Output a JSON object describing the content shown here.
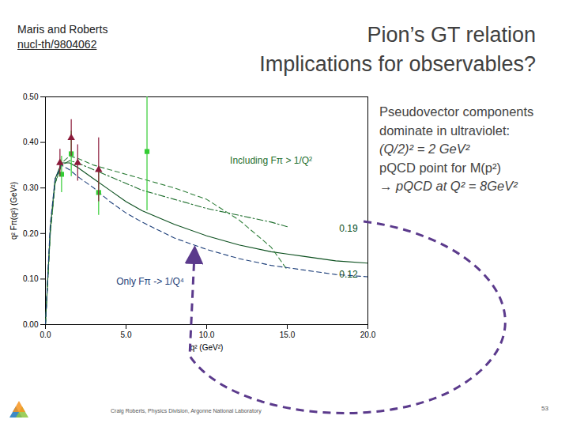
{
  "header": {
    "source": "Maris and Roberts",
    "link": "nucl-th/9804062",
    "title": [
      "Pion’s GT relation",
      "Implications for observables?"
    ]
  },
  "bullets": [
    {
      "text": "Pseudovector components",
      "italic": false
    },
    {
      "text": "dominate in ultraviolet:",
      "italic": false
    },
    {
      "text": "(Q/2)² = 2 GeV²",
      "italic": true
    },
    {
      "text": "pQCD point for M(p²)",
      "italic": false
    },
    {
      "text": "→ pQCD at Q² = 8GeV²",
      "italic": true
    }
  ],
  "footer": {
    "text": "Craig Roberts, Physics Division, Argonne National Laboratory",
    "page": "53"
  },
  "chart_data": {
    "type": "line",
    "x_label": "q² (GeV²)",
    "y_label": "q² Fπ(q²) (GeV²)",
    "xlim": [
      0,
      20
    ],
    "ylim": [
      0,
      0.5
    ],
    "xticks": [
      {
        "value": 0,
        "label": "0.0"
      },
      {
        "value": 5,
        "label": "5.0"
      },
      {
        "value": 10,
        "label": "10.0"
      },
      {
        "value": 15,
        "label": "15.0"
      },
      {
        "value": 20,
        "label": "20.0"
      }
    ],
    "yticks": [
      {
        "value": 0,
        "label": "0.00"
      },
      {
        "value": 0.1,
        "label": "0.10"
      },
      {
        "value": 0.2,
        "label": "0.20"
      },
      {
        "value": 0.3,
        "label": "0.30"
      },
      {
        "value": 0.4,
        "label": "0.40"
      },
      {
        "value": 0.5,
        "label": "0.50"
      }
    ],
    "series": [
      {
        "type": "line",
        "color": "#0b4f1e",
        "line_style": "solid",
        "x": [
          0,
          0.3,
          0.6,
          1,
          1.5,
          2,
          3,
          4,
          5,
          6,
          8,
          10,
          12,
          14,
          15,
          16,
          18,
          20
        ],
        "values": [
          0,
          0.21,
          0.32,
          0.355,
          0.355,
          0.345,
          0.32,
          0.295,
          0.27,
          0.25,
          0.22,
          0.195,
          0.175,
          0.16,
          0.155,
          0.15,
          0.14,
          0.135
        ]
      },
      {
        "type": "line",
        "color": "#1f6f2e",
        "line_style": "dashdot",
        "x": [
          0,
          0.3,
          0.6,
          1,
          1.5,
          2,
          3,
          4,
          5,
          6,
          8,
          10,
          12,
          14,
          15
        ],
        "values": [
          0,
          0.2,
          0.31,
          0.35,
          0.36,
          0.355,
          0.34,
          0.325,
          0.31,
          0.295,
          0.275,
          0.255,
          0.24,
          0.225,
          0.215
        ]
      },
      {
        "type": "line",
        "color": "#2f7f3a",
        "line_style": "dashed",
        "x": [
          0,
          0.3,
          0.6,
          1,
          1.5,
          2,
          3,
          4,
          5,
          6,
          8,
          10,
          12,
          14,
          15
        ],
        "values": [
          0,
          0.2,
          0.31,
          0.355,
          0.37,
          0.365,
          0.35,
          0.34,
          0.33,
          0.32,
          0.3,
          0.275,
          0.23,
          0.17,
          0.12
        ]
      },
      {
        "type": "line",
        "color": "#1d3f7a",
        "line_style": "dashed",
        "x": [
          0,
          0.3,
          0.6,
          1,
          1.5,
          2,
          3,
          4,
          5,
          6,
          8,
          10,
          12,
          14,
          15,
          16,
          18,
          20
        ],
        "values": [
          0,
          0.22,
          0.32,
          0.35,
          0.34,
          0.325,
          0.3,
          0.27,
          0.245,
          0.225,
          0.19,
          0.165,
          0.145,
          0.13,
          0.125,
          0.12,
          0.11,
          0.105
        ]
      },
      {
        "type": "scatter",
        "color": "#33cc33",
        "marker": "square",
        "x": [
          1.0,
          1.6,
          3.3,
          6.3
        ],
        "values": [
          0.33,
          0.375,
          0.29,
          0.38
        ],
        "errors": [
          0.04,
          0.05,
          0.05,
          0.13
        ]
      },
      {
        "type": "scatter",
        "color": "#8b1a3a",
        "marker": "triangle",
        "x": [
          0.9,
          1.6,
          2.0,
          3.3
        ],
        "values": [
          0.355,
          0.41,
          0.355,
          0.34
        ],
        "errors": [
          0.03,
          0.04,
          0.04,
          0.07
        ]
      }
    ],
    "annotations": [
      {
        "text": "Including Fπ > 1/Q²",
        "x": 14,
        "y": 0.36,
        "color": "#1f6f2e"
      },
      {
        "text": "Only Fπ -> 1/Q⁴",
        "x": 6.5,
        "y": 0.095,
        "color": "#1d3f7a"
      },
      {
        "text": "0.19",
        "x": 18.8,
        "y": 0.21,
        "color": "#0b4f1e"
      },
      {
        "text": "0.12",
        "x": 18.8,
        "y": 0.11,
        "color": "#0b4f1e"
      }
    ]
  }
}
